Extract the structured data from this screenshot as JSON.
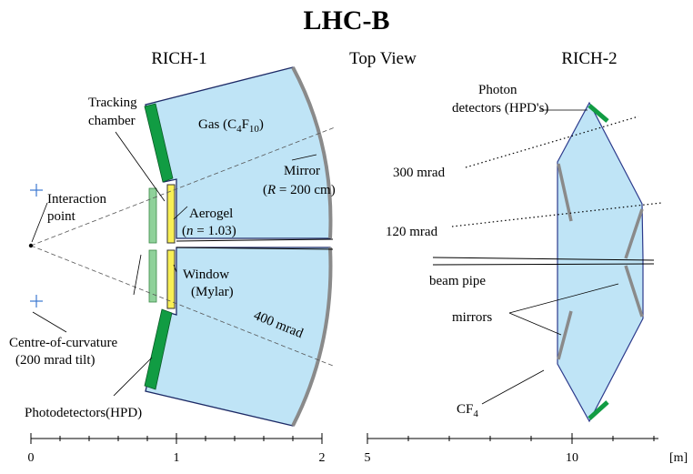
{
  "title": "LHC-B",
  "view_label": "Top View",
  "rich1": {
    "title": "RICH-1",
    "tracking_chamber": [
      "Tracking",
      "chamber"
    ],
    "gas": {
      "prefix": "Gas  (C",
      "sub1": "4",
      "mid": "F",
      "sub2": "10",
      "suffix": ")"
    },
    "mirror": {
      "line1": "Mirror",
      "line2_pre": "(",
      "line2_var": "R",
      "line2_post": " = 200 cm)"
    },
    "interaction_point": [
      "Interaction",
      "point"
    ],
    "aerogel": {
      "line1": "Aerogel",
      "line2_pre": "(",
      "line2_var": "n",
      "line2_post": " = 1.03)"
    },
    "window": [
      "Window",
      "(Mylar)"
    ],
    "angle": "400 mrad",
    "centre_of_curvature": [
      "Centre-of-curvature",
      "(200 mrad tilt)"
    ],
    "photodetectors": "Photodetectors(HPD)"
  },
  "rich2": {
    "title": "RICH-2",
    "photon_detectors": [
      "Photon",
      "detectors (HPD's)"
    ],
    "angle_300": "300 mrad",
    "angle_120": "120 mrad",
    "beam_pipe": "beam pipe",
    "mirrors": "mirrors",
    "gas": {
      "prefix": "CF",
      "sub": "4"
    }
  },
  "axis_left": {
    "ticks": [
      "0",
      "1",
      "2"
    ]
  },
  "axis_right": {
    "ticks": [
      "5",
      "10"
    ],
    "unit": "[m]"
  },
  "colors": {
    "gas_fill": "#bfe4f6",
    "detector": "#119c43",
    "tracking": "#8fd19a",
    "aerogel": "#f8ef55",
    "mirror": "#8a8a8a",
    "outline": "#2c3a8c",
    "cross": "#3b78d0"
  }
}
